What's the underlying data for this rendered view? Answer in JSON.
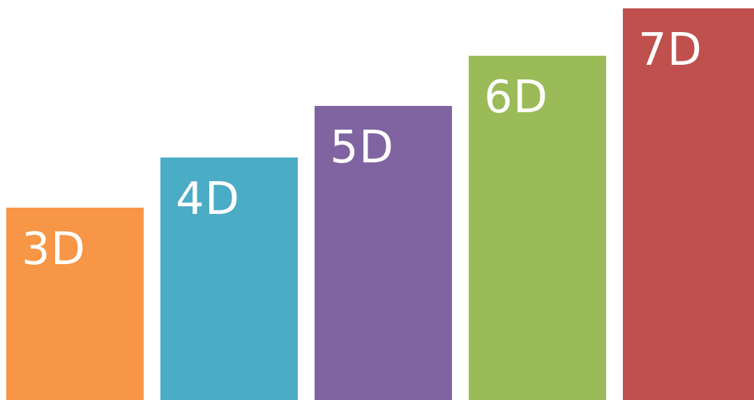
{
  "steps": [
    {
      "label": "3D",
      "color": "#F79646"
    },
    {
      "label": "4D",
      "color": "#4BACC6"
    },
    {
      "label": "5D",
      "color": "#8064A2"
    },
    {
      "label": "6D",
      "color": "#9BBB59"
    },
    {
      "label": "7D",
      "color": "#C0504D"
    }
  ]
}
